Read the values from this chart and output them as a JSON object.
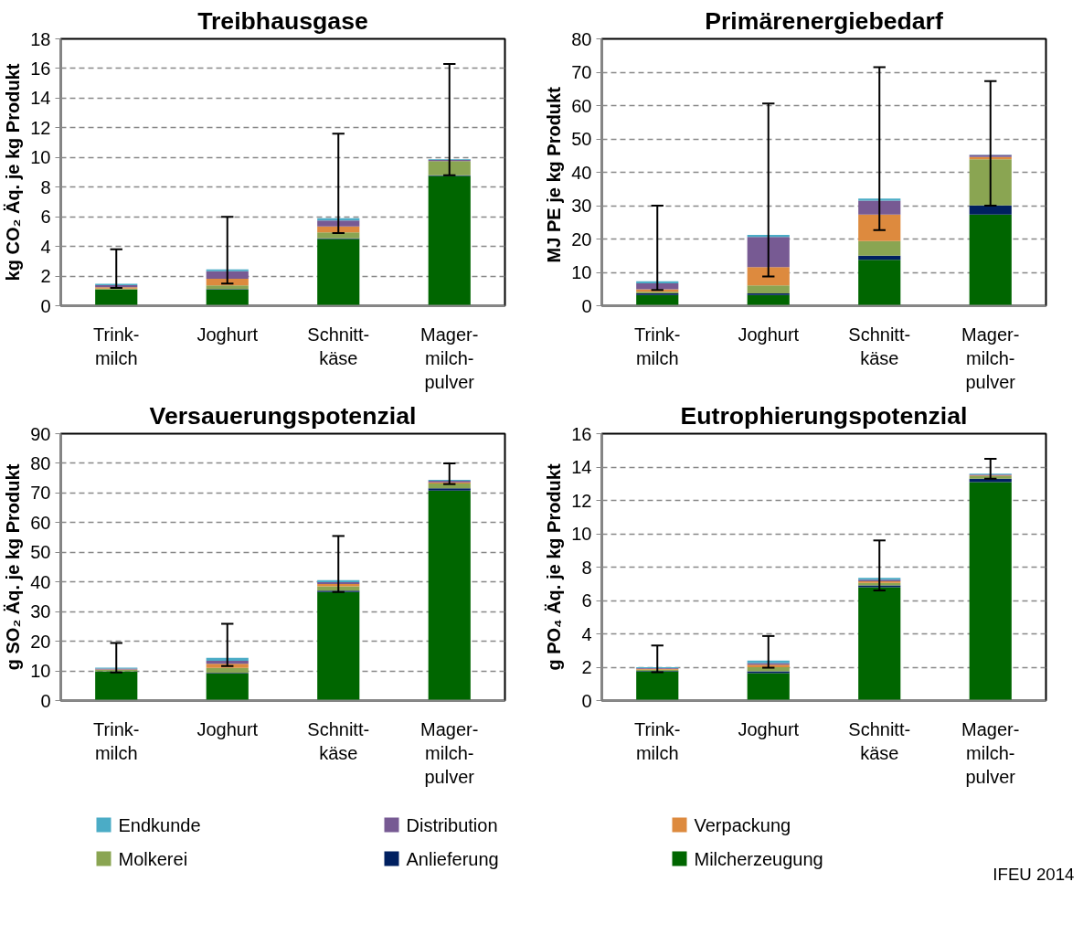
{
  "chart_data": [
    {
      "type": "bar",
      "stacked": true,
      "title": "Treibhausgase",
      "ylabel": "kg CO₂ Äq. je kg Produkt",
      "categories": [
        "Trink-\nmilch",
        "Joghurt",
        "Schnitt-\nkäse",
        "Mager-\nmilch-\npulver"
      ],
      "series": [
        {
          "name": "Milcherzeugung",
          "color": "#006600",
          "values": [
            1.1,
            1.1,
            4.5,
            8.75
          ]
        },
        {
          "name": "Anlieferung",
          "color": "#002060",
          "values": [
            null,
            0.02,
            0.05,
            0.05
          ]
        },
        {
          "name": "Molkerei",
          "color": "#8aa552",
          "values": [
            0.05,
            0.25,
            0.4,
            0.95
          ]
        },
        {
          "name": "Verpackung",
          "color": "#dd8a3e",
          "values": [
            0.1,
            0.45,
            0.4,
            null
          ]
        },
        {
          "name": "Distribution",
          "color": "#775a93",
          "values": [
            0.13,
            0.5,
            0.4,
            0.1
          ]
        },
        {
          "name": "Endkunde",
          "color": "#4bacc6",
          "values": [
            0.1,
            0.13,
            0.15,
            0.05
          ],
          "errors": [
            [
              1.2,
              3.8
            ],
            [
              1.5,
              6.0
            ],
            [
              4.9,
              11.6
            ],
            [
              8.8,
              16.3
            ]
          ]
        }
      ],
      "ylim": [
        0,
        18
      ],
      "yticks": [
        0,
        2,
        4,
        6,
        8,
        10,
        12,
        14,
        16,
        18
      ],
      "grid": "y",
      "legend": "bottom"
    },
    {
      "type": "bar",
      "stacked": true,
      "title": "Primärenergiebedarf",
      "ylabel": "MJ PE  je kg Produkt",
      "categories": [
        "Trink-\nmilch",
        "Joghurt",
        "Schnitt-\nkäse",
        "Mager-\nmilch-\npulver"
      ],
      "series": [
        {
          "color": "#006600",
          "values": [
            3.2,
            3.2,
            13.8,
            27.3
          ]
        },
        {
          "color": "#002060",
          "values": [
            0.5,
            0.5,
            1.2,
            2.8
          ]
        },
        {
          "color": "#8aa552",
          "values": [
            0.5,
            2.4,
            4.4,
            13.8
          ]
        },
        {
          "color": "#dd8a3e",
          "values": [
            0.7,
            5.5,
            7.9,
            0.7
          ]
        },
        {
          "color": "#775a93",
          "values": [
            1.8,
            9.0,
            4.2,
            0.6
          ]
        },
        {
          "color": "#4bacc6",
          "values": [
            0.6,
            0.6,
            0.6,
            0.1
          ],
          "errors": [
            [
              4.7,
              30
            ],
            [
              8.8,
              60.6
            ],
            [
              22.7,
              71.5
            ],
            [
              30,
              67.3
            ]
          ]
        }
      ],
      "ylim": [
        0,
        80
      ],
      "yticks": [
        0,
        10,
        20,
        30,
        40,
        50,
        60,
        70,
        80
      ],
      "grid": "y"
    },
    {
      "type": "bar",
      "stacked": true,
      "title": "Versauerungspotenzial",
      "ylabel": "g SO₂ Äq. je kg Produkt",
      "categories": [
        "Trink-\nmilch",
        "Joghurt",
        "Schnitt-\nkäse",
        "Mager-\nmilch-\npulver"
      ],
      "series": [
        {
          "color": "#006600",
          "values": [
            9.8,
            9.1,
            36.6,
            70.8
          ]
        },
        {
          "color": "#002060",
          "values": [
            0.1,
            0.2,
            0.5,
            0.8
          ]
        },
        {
          "color": "#8aa552",
          "values": [
            0.4,
            1.7,
            1.4,
            1.6
          ]
        },
        {
          "color": "#dd8a3e",
          "values": [
            0.2,
            1.4,
            0.8,
            0.4
          ]
        },
        {
          "color": "#775a93",
          "values": [
            0.3,
            1.0,
            0.6,
            0.5
          ]
        },
        {
          "color": "#4bacc6",
          "values": [
            0.3,
            1.0,
            0.7,
            0.3
          ],
          "errors": [
            [
              9.5,
              19.4
            ],
            [
              11.6,
              25.9
            ],
            [
              36.6,
              55.5
            ],
            [
              73,
              80
            ]
          ]
        }
      ],
      "ylim": [
        0,
        90
      ],
      "yticks": [
        0,
        10,
        20,
        30,
        40,
        50,
        60,
        70,
        80,
        90
      ],
      "grid": "y"
    },
    {
      "type": "bar",
      "stacked": true,
      "title": "Eutrophierungspotenzial",
      "ylabel": "g PO₄ Äq. je kg Produkt",
      "categories": [
        "Trink-\nmilch",
        "Joghurt",
        "Schnitt-\nkäse",
        "Mager-\nmilch-\npulver"
      ],
      "series": [
        {
          "color": "#006600",
          "values": [
            1.75,
            1.65,
            6.8,
            13.1
          ]
        },
        {
          "color": "#002060",
          "values": [
            0.03,
            0.1,
            0.1,
            0.2
          ]
        },
        {
          "color": "#8aa552",
          "values": [
            0.07,
            0.25,
            0.15,
            0.15
          ]
        },
        {
          "color": "#dd8a3e",
          "values": [
            0.05,
            0.15,
            0.1,
            0.05
          ]
        },
        {
          "color": "#775a93",
          "values": [
            0.05,
            0.1,
            0.1,
            0.05
          ]
        },
        {
          "color": "#4bacc6",
          "values": [
            0.05,
            0.15,
            0.1,
            0.05
          ],
          "errors": [
            [
              1.7,
              3.3
            ],
            [
              1.97,
              3.87
            ],
            [
              6.6,
              9.6
            ],
            [
              13.3,
              14.5
            ]
          ]
        }
      ],
      "ylim": [
        0,
        16
      ],
      "yticks": [
        0,
        2,
        4,
        6,
        8,
        10,
        12,
        14,
        16
      ],
      "grid": "y",
      "annotations": [
        "IFEU 2014"
      ]
    }
  ]
}
